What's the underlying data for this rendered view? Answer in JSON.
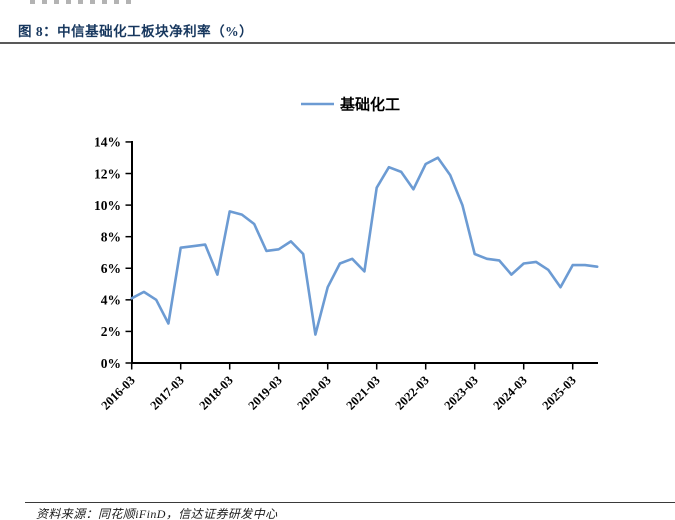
{
  "page": {
    "source_note": "资料来源：同花顺iFinD，信达证券研发中心"
  },
  "chart_data": {
    "type": "line",
    "title": "图 8：中信基础化工板块净利率（%）",
    "x": [
      "2016-03",
      "2016-06",
      "2016-09",
      "2016-12",
      "2017-03",
      "2017-06",
      "2017-09",
      "2017-12",
      "2018-03",
      "2018-06",
      "2018-09",
      "2018-12",
      "2019-03",
      "2019-06",
      "2019-09",
      "2019-12",
      "2020-03",
      "2020-06",
      "2020-09",
      "2020-12",
      "2021-03",
      "2021-06",
      "2021-09",
      "2021-12",
      "2022-03",
      "2022-06",
      "2022-09",
      "2022-12",
      "2023-03",
      "2023-06",
      "2023-09",
      "2023-12",
      "2024-03",
      "2024-06",
      "2024-09",
      "2024-12",
      "2025-03",
      "2025-06",
      "2025-09"
    ],
    "series": [
      {
        "name": "基础化工",
        "color": "#6C9BD3",
        "values": [
          4.1,
          4.5,
          4.0,
          2.5,
          7.3,
          7.4,
          7.5,
          5.6,
          9.6,
          9.4,
          8.8,
          7.1,
          7.2,
          7.7,
          6.9,
          1.8,
          4.8,
          6.3,
          6.6,
          5.8,
          11.1,
          12.4,
          12.1,
          11.0,
          12.6,
          13.0,
          11.9,
          10.0,
          6.9,
          6.6,
          6.5,
          5.6,
          6.3,
          6.4,
          5.9,
          4.8,
          6.2,
          6.2,
          6.1
        ]
      }
    ],
    "x_tick_labels": [
      "2016-03",
      "2017-03",
      "2018-03",
      "2019-03",
      "2020-03",
      "2021-03",
      "2022-03",
      "2023-03",
      "2024-03",
      "2025-03"
    ],
    "ylim": [
      0,
      14
    ],
    "y_tick_step": 2,
    "y_tick_suffix": "%",
    "grid": false,
    "legend_position": "top-center"
  },
  "colors": {
    "title": "#17375E",
    "axis": "#000000",
    "title_rule": "#595959",
    "line": "#6C9BD3"
  }
}
